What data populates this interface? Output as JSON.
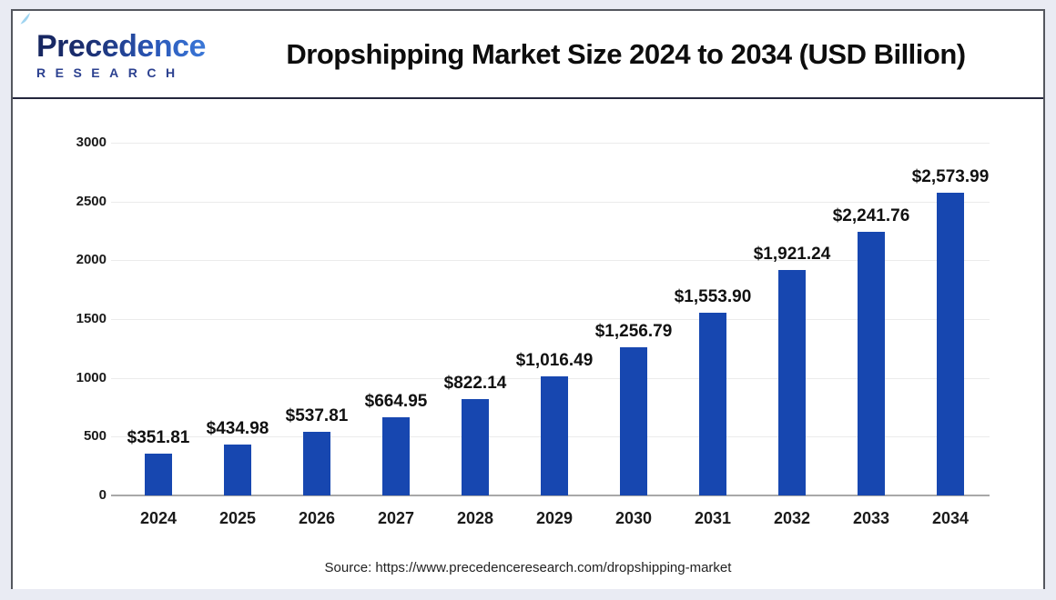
{
  "header": {
    "logo": {
      "name": "Precedence",
      "subtitle": "RESEARCH"
    },
    "title": "Dropshipping Market Size 2024 to 2034 (USD Billion)"
  },
  "chart_data": {
    "type": "bar",
    "title": "Dropshipping Market Size 2024 to 2034 (USD Billion)",
    "categories": [
      "2024",
      "2025",
      "2026",
      "2027",
      "2028",
      "2029",
      "2030",
      "2031",
      "2032",
      "2033",
      "2034"
    ],
    "values": [
      351.81,
      434.98,
      537.81,
      664.95,
      822.14,
      1016.49,
      1256.79,
      1553.9,
      1921.24,
      2241.76,
      2573.99
    ],
    "value_labels": [
      "$351.81",
      "$434.98",
      "$537.81",
      "$664.95",
      "$822.14",
      "$1,016.49",
      "$1,256.79",
      "$1,553.90",
      "$1,921.24",
      "$2,241.76",
      "$2,573.99"
    ],
    "xlabel": "",
    "ylabel": "",
    "ylim": [
      0,
      3000
    ],
    "yticks": [
      0,
      500,
      1000,
      1500,
      2000,
      2500,
      3000
    ],
    "grid": true,
    "legend": false,
    "bar_color": "#1747b0",
    "units": "USD Billion"
  },
  "footer": {
    "source": "Source: https://www.precedenceresearch.com/dropshipping-market"
  }
}
